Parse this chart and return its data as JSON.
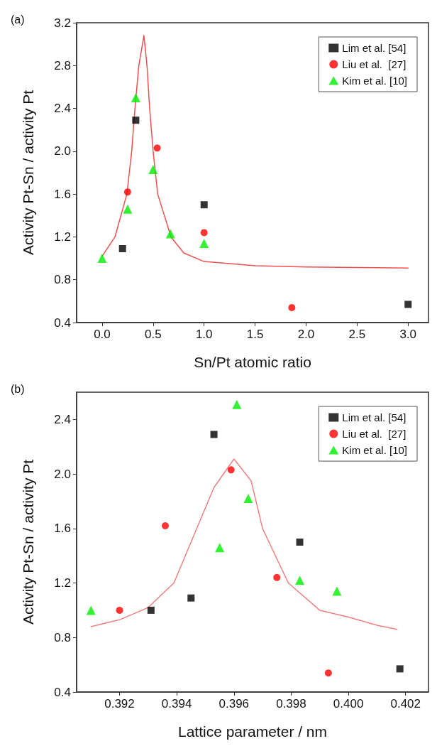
{
  "chart_data": [
    {
      "type": "scatter",
      "title": "(a)",
      "xlabel": "Sn/Pt atomic ratio",
      "ylabel": "Activity Pt-Sn / activity Pt",
      "xlim": [
        -0.25,
        3.2
      ],
      "ylim": [
        0.4,
        3.2
      ],
      "xticks": [
        {
          "value": 0,
          "label": "0.0"
        },
        0.5,
        {
          "value": 1,
          "label": "1.0"
        },
        1.5,
        {
          "value": 2,
          "label": "2.0"
        },
        2.5,
        {
          "value": 3,
          "label": "3.0"
        }
      ],
      "yticks": [
        0.4,
        0.8,
        1.2,
        1.6,
        {
          "value": 2,
          "label": "2.0"
        },
        2.4,
        2.8,
        3.2
      ],
      "grid": false,
      "legend": "top right",
      "series": [
        {
          "name": "Lim et al. [54]",
          "color": "#000000",
          "marker": "square",
          "x": [
            0.2,
            0.33,
            1.0,
            3.0
          ],
          "values": [
            1.09,
            2.29,
            1.5,
            0.57
          ]
        },
        {
          "name": "Liu et al.  [27]",
          "color": "#ff0000",
          "marker": "circle",
          "x": [
            0.25,
            0.54,
            1.0,
            1.86
          ],
          "values": [
            1.62,
            2.03,
            1.24,
            0.54
          ]
        },
        {
          "name": "Kim et al. [10]",
          "color": "#00ee00",
          "marker": "triangle",
          "x": [
            0,
            0.25,
            0.33,
            0.5,
            0.67,
            1.0
          ],
          "values": [
            1.0,
            1.46,
            2.5,
            1.83,
            1.23,
            1.14
          ]
        },
        {
          "type": "line",
          "color": "#f05050",
          "marker": "none",
          "line_style": "solid",
          "x": [
            0,
            0.126,
            0.243,
            0.29,
            0.322,
            0.36,
            0.41,
            0.44,
            0.466,
            0.5,
            0.545,
            0.675,
            0.8,
            1.0,
            1.5,
            2.0,
            2.5,
            3.0
          ],
          "values": [
            1.02,
            1.2,
            1.6,
            2.0,
            2.4,
            2.8,
            3.08,
            2.8,
            2.4,
            2.0,
            1.6,
            1.2,
            1.05,
            0.97,
            0.93,
            0.92,
            0.915,
            0.91
          ]
        }
      ]
    },
    {
      "type": "scatter",
      "title": "(b)",
      "xlabel": "Lattice parameter / nm",
      "ylabel": "Activity Pt-Sn / activity Pt",
      "xlim": [
        0.3905,
        0.4028
      ],
      "ylim": [
        0.4,
        2.6
      ],
      "xticks": [
        0.392,
        0.394,
        0.396,
        0.398,
        {
          "value": 0.4,
          "label": "0.400"
        },
        0.402
      ],
      "yticks": [
        0.4,
        0.8,
        1.2,
        1.6,
        {
          "value": 2,
          "label": "2.0"
        },
        2.4
      ],
      "grid": false,
      "legend": "top right",
      "series": [
        {
          "name": "Lim et al. [54]",
          "color": "#000000",
          "marker": "square",
          "x": [
            0.3931,
            0.3945,
            0.3953,
            0.3983,
            0.4018
          ],
          "values": [
            1.0,
            1.09,
            2.29,
            1.5,
            0.57
          ]
        },
        {
          "name": "Liu et al.  [27]",
          "color": "#ff0000",
          "marker": "circle",
          "x": [
            0.392,
            0.3936,
            0.3959,
            0.3975,
            0.3993
          ],
          "values": [
            1.0,
            1.62,
            2.03,
            1.24,
            0.54
          ]
        },
        {
          "name": "Kim et al. [10]",
          "color": "#00ee00",
          "marker": "triangle",
          "x": [
            0.391,
            0.3955,
            0.3961,
            0.3965,
            0.3983,
            0.3996
          ],
          "values": [
            1.0,
            1.46,
            2.51,
            1.82,
            1.22,
            1.14
          ]
        },
        {
          "type": "line",
          "color": "#f08080",
          "marker": "none",
          "line_style": "solid",
          "x": [
            0.391,
            0.392,
            0.393,
            0.3939,
            0.3947,
            0.3953,
            0.396,
            0.3966,
            0.397,
            0.3979,
            0.399,
            0.4,
            0.401,
            0.4017
          ],
          "values": [
            0.88,
            0.93,
            1.02,
            1.2,
            1.6,
            1.9,
            2.11,
            1.95,
            1.6,
            1.2,
            1.0,
            0.95,
            0.89,
            0.86
          ]
        }
      ]
    }
  ]
}
